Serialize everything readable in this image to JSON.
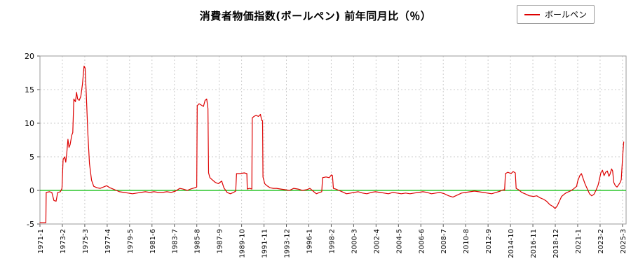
{
  "page": {
    "title": "消費者物価指数(ボールペン) 前年同月比（％）",
    "legend": {
      "label": "ボールペン",
      "line_color": "#dd0000"
    }
  },
  "chart_data": {
    "type": "line",
    "title": "消費者物価指数(ボールペン) 前年同月比（％）",
    "xlabel": "",
    "ylabel": "",
    "ylim": [
      -5,
      20
    ],
    "yticks": [
      20,
      15,
      10,
      5,
      0,
      -5
    ],
    "x_domain": [
      1971.0,
      2025.5
    ],
    "xticks": [
      "1971-1",
      "1973-2",
      "1975-3",
      "1977-4",
      "1979-5",
      "1981-6",
      "1983-7",
      "1985-8",
      "1987-9",
      "1989-10",
      "1991-11",
      "1993-12",
      "1996-1",
      "1998-2",
      "2000-3",
      "2002-4",
      "2004-5",
      "2006-6",
      "2008-7",
      "2010-8",
      "2012-9",
      "2014-10",
      "2016-11",
      "2018-12",
      "2021-1",
      "2023-2",
      "2025-3"
    ],
    "xtick_interval_months": 25,
    "grid": true,
    "grid_color": "#cccccc",
    "border_color": "#999999",
    "zero_line_color": "#00bb00",
    "legend_position": "top-right",
    "series": [
      {
        "name": "ボールペン",
        "color": "#dd0000",
        "points": [
          [
            1971.0,
            -4.8
          ],
          [
            1971.55,
            -4.8
          ],
          [
            1971.58,
            -0.3
          ],
          [
            1971.9,
            -0.2
          ],
          [
            1972.1,
            -0.3
          ],
          [
            1972.3,
            -1.5
          ],
          [
            1972.5,
            -1.6
          ],
          [
            1972.65,
            -0.3
          ],
          [
            1972.9,
            -0.2
          ],
          [
            1973.05,
            0.3
          ],
          [
            1973.15,
            4.6
          ],
          [
            1973.3,
            5.0
          ],
          [
            1973.4,
            4.2
          ],
          [
            1973.5,
            5.6
          ],
          [
            1973.6,
            7.6
          ],
          [
            1973.7,
            6.4
          ],
          [
            1973.8,
            6.8
          ],
          [
            1973.95,
            8.2
          ],
          [
            1974.05,
            8.6
          ],
          [
            1974.15,
            13.6
          ],
          [
            1974.3,
            13.2
          ],
          [
            1974.4,
            14.6
          ],
          [
            1974.5,
            13.6
          ],
          [
            1974.65,
            13.4
          ],
          [
            1974.8,
            14.0
          ],
          [
            1974.95,
            15.8
          ],
          [
            1975.1,
            18.5
          ],
          [
            1975.2,
            18.2
          ],
          [
            1975.3,
            14.5
          ],
          [
            1975.45,
            8.5
          ],
          [
            1975.6,
            4.0
          ],
          [
            1975.8,
            1.5
          ],
          [
            1976.0,
            0.6
          ],
          [
            1976.3,
            0.4
          ],
          [
            1976.6,
            0.3
          ],
          [
            1976.9,
            0.5
          ],
          [
            1977.2,
            0.7
          ],
          [
            1977.5,
            0.4
          ],
          [
            1977.8,
            0.2
          ],
          [
            1978.1,
            0.0
          ],
          [
            1978.4,
            -0.2
          ],
          [
            1978.8,
            -0.3
          ],
          [
            1979.2,
            -0.4
          ],
          [
            1979.6,
            -0.5
          ],
          [
            1980.0,
            -0.4
          ],
          [
            1980.4,
            -0.3
          ],
          [
            1980.8,
            -0.2
          ],
          [
            1981.2,
            -0.3
          ],
          [
            1981.6,
            -0.2
          ],
          [
            1982.0,
            -0.3
          ],
          [
            1982.4,
            -0.3
          ],
          [
            1982.8,
            -0.2
          ],
          [
            1983.2,
            -0.3
          ],
          [
            1983.6,
            -0.1
          ],
          [
            1984.0,
            0.3
          ],
          [
            1984.3,
            0.2
          ],
          [
            1984.7,
            0.0
          ],
          [
            1985.0,
            0.2
          ],
          [
            1985.4,
            0.4
          ],
          [
            1985.58,
            0.5
          ],
          [
            1985.62,
            12.6
          ],
          [
            1985.8,
            12.9
          ],
          [
            1986.0,
            12.7
          ],
          [
            1986.2,
            12.5
          ],
          [
            1986.35,
            13.4
          ],
          [
            1986.5,
            13.6
          ],
          [
            1986.62,
            12.2
          ],
          [
            1986.68,
            2.6
          ],
          [
            1986.8,
            1.9
          ],
          [
            1987.0,
            1.6
          ],
          [
            1987.3,
            1.2
          ],
          [
            1987.6,
            1.0
          ],
          [
            1987.9,
            1.4
          ],
          [
            1988.1,
            0.4
          ],
          [
            1988.4,
            -0.3
          ],
          [
            1988.7,
            -0.5
          ],
          [
            1989.0,
            -0.3
          ],
          [
            1989.2,
            -0.1
          ],
          [
            1989.28,
            2.5
          ],
          [
            1989.6,
            2.5
          ],
          [
            1990.0,
            2.6
          ],
          [
            1990.24,
            2.5
          ],
          [
            1990.28,
            0.2
          ],
          [
            1990.5,
            0.3
          ],
          [
            1990.7,
            0.2
          ],
          [
            1990.74,
            10.8
          ],
          [
            1990.9,
            11.0
          ],
          [
            1991.1,
            11.2
          ],
          [
            1991.3,
            11.0
          ],
          [
            1991.5,
            11.3
          ],
          [
            1991.62,
            10.4
          ],
          [
            1991.7,
            10.4
          ],
          [
            1991.74,
            2.0
          ],
          [
            1991.9,
            1.0
          ],
          [
            1992.1,
            0.7
          ],
          [
            1992.4,
            0.4
          ],
          [
            1992.7,
            0.3
          ],
          [
            1993.0,
            0.3
          ],
          [
            1993.4,
            0.2
          ],
          [
            1993.8,
            0.1
          ],
          [
            1994.2,
            0.0
          ],
          [
            1994.6,
            0.3
          ],
          [
            1995.0,
            0.2
          ],
          [
            1995.4,
            0.0
          ],
          [
            1995.8,
            0.1
          ],
          [
            1996.1,
            0.3
          ],
          [
            1996.4,
            -0.1
          ],
          [
            1996.7,
            -0.5
          ],
          [
            1997.0,
            -0.3
          ],
          [
            1997.2,
            -0.2
          ],
          [
            1997.28,
            1.9
          ],
          [
            1997.6,
            2.0
          ],
          [
            1997.9,
            1.9
          ],
          [
            1998.1,
            2.3
          ],
          [
            1998.2,
            2.2
          ],
          [
            1998.28,
            0.3
          ],
          [
            1998.5,
            0.2
          ],
          [
            1998.8,
            0.0
          ],
          [
            1999.1,
            -0.2
          ],
          [
            1999.5,
            -0.5
          ],
          [
            1999.9,
            -0.4
          ],
          [
            2000.2,
            -0.3
          ],
          [
            2000.6,
            -0.2
          ],
          [
            2001.0,
            -0.4
          ],
          [
            2001.4,
            -0.5
          ],
          [
            2001.8,
            -0.3
          ],
          [
            2002.2,
            -0.2
          ],
          [
            2002.6,
            -0.3
          ],
          [
            2003.0,
            -0.4
          ],
          [
            2003.4,
            -0.5
          ],
          [
            2003.8,
            -0.3
          ],
          [
            2004.2,
            -0.4
          ],
          [
            2004.6,
            -0.5
          ],
          [
            2005.0,
            -0.4
          ],
          [
            2005.4,
            -0.5
          ],
          [
            2005.8,
            -0.4
          ],
          [
            2006.2,
            -0.3
          ],
          [
            2006.6,
            -0.2
          ],
          [
            2007.0,
            -0.3
          ],
          [
            2007.4,
            -0.5
          ],
          [
            2007.8,
            -0.4
          ],
          [
            2008.2,
            -0.3
          ],
          [
            2008.6,
            -0.5
          ],
          [
            2009.0,
            -0.8
          ],
          [
            2009.4,
            -1.0
          ],
          [
            2009.8,
            -0.7
          ],
          [
            2010.2,
            -0.4
          ],
          [
            2010.6,
            -0.3
          ],
          [
            2011.0,
            -0.2
          ],
          [
            2011.4,
            -0.1
          ],
          [
            2011.8,
            -0.2
          ],
          [
            2012.2,
            -0.3
          ],
          [
            2012.6,
            -0.4
          ],
          [
            2013.0,
            -0.5
          ],
          [
            2013.4,
            -0.3
          ],
          [
            2013.8,
            -0.1
          ],
          [
            2014.1,
            0.1
          ],
          [
            2014.2,
            0.0
          ],
          [
            2014.28,
            2.5
          ],
          [
            2014.5,
            2.7
          ],
          [
            2014.8,
            2.5
          ],
          [
            2015.0,
            2.8
          ],
          [
            2015.2,
            2.6
          ],
          [
            2015.28,
            0.3
          ],
          [
            2015.5,
            0.1
          ],
          [
            2015.8,
            -0.3
          ],
          [
            2016.1,
            -0.5
          ],
          [
            2016.5,
            -0.8
          ],
          [
            2016.9,
            -0.9
          ],
          [
            2017.2,
            -0.8
          ],
          [
            2017.5,
            -1.1
          ],
          [
            2017.8,
            -1.3
          ],
          [
            2018.1,
            -1.6
          ],
          [
            2018.4,
            -2.1
          ],
          [
            2018.7,
            -2.4
          ],
          [
            2018.9,
            -2.7
          ],
          [
            2019.1,
            -2.3
          ],
          [
            2019.3,
            -1.6
          ],
          [
            2019.5,
            -0.9
          ],
          [
            2019.8,
            -0.5
          ],
          [
            2020.0,
            -0.3
          ],
          [
            2020.3,
            -0.1
          ],
          [
            2020.6,
            0.2
          ],
          [
            2020.9,
            0.6
          ],
          [
            2021.0,
            1.4
          ],
          [
            2021.2,
            2.2
          ],
          [
            2021.35,
            2.5
          ],
          [
            2021.5,
            1.8
          ],
          [
            2021.7,
            0.9
          ],
          [
            2021.9,
            0.2
          ],
          [
            2022.1,
            -0.5
          ],
          [
            2022.3,
            -0.8
          ],
          [
            2022.5,
            -0.6
          ],
          [
            2022.7,
            0.0
          ],
          [
            2022.9,
            0.8
          ],
          [
            2023.0,
            1.5
          ],
          [
            2023.15,
            2.6
          ],
          [
            2023.3,
            3.0
          ],
          [
            2023.45,
            2.2
          ],
          [
            2023.6,
            2.7
          ],
          [
            2023.75,
            2.9
          ],
          [
            2023.9,
            2.1
          ],
          [
            2024.0,
            2.4
          ],
          [
            2024.15,
            3.2
          ],
          [
            2024.25,
            2.9
          ],
          [
            2024.35,
            1.2
          ],
          [
            2024.5,
            0.7
          ],
          [
            2024.65,
            0.5
          ],
          [
            2024.8,
            0.8
          ],
          [
            2024.95,
            1.2
          ],
          [
            2025.05,
            1.6
          ],
          [
            2025.12,
            3.5
          ],
          [
            2025.2,
            5.5
          ],
          [
            2025.28,
            7.2
          ]
        ]
      }
    ]
  }
}
